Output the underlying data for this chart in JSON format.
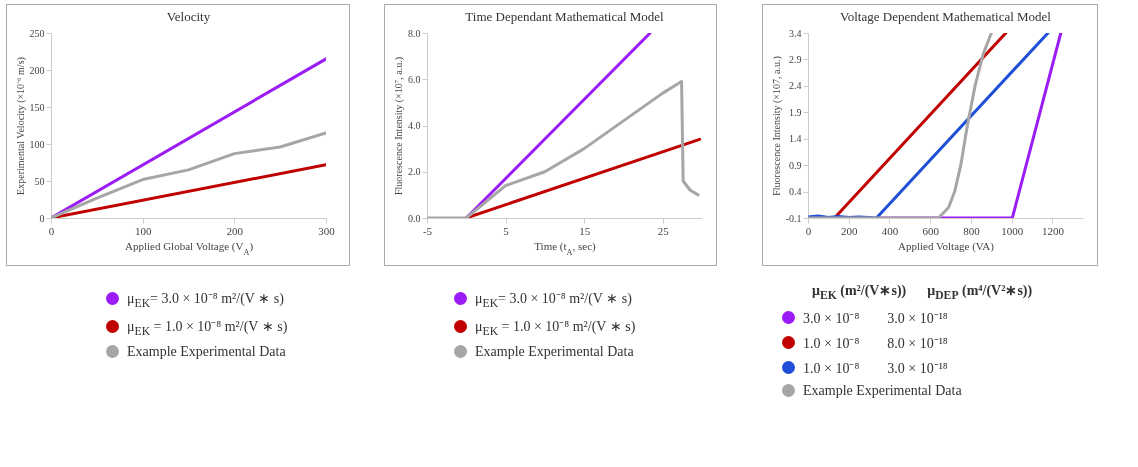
{
  "chart_data": [
    {
      "type": "line",
      "title": "Velocity",
      "xlabel": "Applied Global Voltage (V$_{A}$)",
      "ylabel": "Experimental  Velocity (×10⁻⁶ m/s)",
      "xlim": [
        0,
        300
      ],
      "xticks": [
        0,
        100,
        200,
        300
      ],
      "ylim": [
        0,
        250
      ],
      "yticks": [
        0,
        50,
        100,
        150,
        200,
        250
      ],
      "legend": "bottom",
      "series": [
        {
          "name": "μ$_{EK}$= 3.0 × 10⁻⁸ m²/(V ∗ s)",
          "color": "#9b1cf5",
          "x": [
            0,
            300
          ],
          "values": [
            0,
            215
          ]
        },
        {
          "name": "μ$_{EK}$ = 1.0 × 10⁻⁸ m²/(V ∗ s)",
          "color": "#c00000",
          "x": [
            0,
            300
          ],
          "values": [
            0,
            72
          ]
        },
        {
          "name": "Example Experimental Data",
          "color": "#a6a6a6",
          "x": [
            0,
            50,
            100,
            150,
            200,
            250,
            300
          ],
          "values": [
            0,
            27,
            52,
            65,
            87,
            96,
            115
          ]
        }
      ]
    },
    {
      "type": "line",
      "title": "Time Dependant Mathematical Model",
      "xlabel": "Time (t$_{A}$, sec)",
      "ylabel": "Fluorescence Intensity (×10⁷, a.u.)",
      "xlim": [
        -5,
        30
      ],
      "xticks": [
        -5,
        5,
        15,
        25
      ],
      "ylim": [
        0,
        8
      ],
      "yticks": [
        {
          "value": 0,
          "label": "0.0"
        },
        {
          "value": 2,
          "label": "2.0"
        },
        {
          "value": 4,
          "label": "4.0"
        },
        {
          "value": 6,
          "label": "6.0"
        },
        {
          "value": 8,
          "label": "8.0"
        }
      ],
      "legend": "bottom",
      "series": [
        {
          "name": "μ$_{EK}$= 3.0 × 10⁻⁸ m²/(V ∗ s)",
          "color": "#9b1cf5",
          "x": [
            0,
            23.4
          ],
          "values": [
            0,
            8
          ]
        },
        {
          "name": "μ$_{EK}$ = 1.0 × 10⁻⁸ m²/(V ∗ s)",
          "color": "#c00000",
          "x": [
            0,
            29.7
          ],
          "values": [
            0,
            3.4
          ]
        },
        {
          "name": "Example Experimental Data",
          "color": "#a6a6a6",
          "x": [
            -5,
            0,
            5,
            10,
            15,
            20,
            25,
            27.4,
            27.6,
            28.5,
            29.5
          ],
          "values": [
            0,
            0,
            1.4,
            2.0,
            3.0,
            4.2,
            5.4,
            5.9,
            1.6,
            1.2,
            1.0
          ]
        }
      ]
    },
    {
      "type": "line",
      "title": "Voltage Dependent Mathematical Model",
      "xlabel": "Applied  Voltage (VA)",
      "ylabel": "Fluorescence Intensity (×107, a.u.)",
      "xlim": [
        0,
        1350
      ],
      "xticks": [
        0,
        200,
        400,
        600,
        800,
        1000,
        1200
      ],
      "ylim": [
        -0.1,
        3.4
      ],
      "yticks": [
        -0.1,
        0.4,
        0.9,
        1.4,
        1.9,
        2.4,
        2.9,
        3.4
      ],
      "legend": "bottom",
      "legend_title": "μ$_{EK}$ (m²/(V∗s))      μ$_{DEP}$ (m⁴/(V²∗s))",
      "series": [
        {
          "name": "3.0 × 10⁻⁸        3.0 × 10⁻¹⁸",
          "color": "#9b1cf5",
          "x": [
            340,
            1003,
            1241
          ],
          "values": [
            -0.1,
            -0.1,
            3.4
          ]
        },
        {
          "name": "1.0 × 10⁻⁸        8.0 × 10⁻¹⁸",
          "color": "#c00000",
          "x": [
            0,
            130,
            971
          ],
          "values": [
            -0.1,
            -0.1,
            3.4
          ]
        },
        {
          "name": "1.0 × 10⁻⁸        3.0 × 10⁻¹⁸",
          "color": "#1f4fd6",
          "x": [
            0,
            50,
            100,
            150,
            200,
            250,
            300,
            336,
            1178
          ],
          "values": [
            -0.08,
            -0.06,
            -0.09,
            -0.07,
            -0.09,
            -0.08,
            -0.09,
            -0.1,
            3.4
          ]
        },
        {
          "name": "Example Experimental Data",
          "color": "#a6a6a6",
          "x": [
            0,
            640,
            690,
            720,
            750,
            780,
            820,
            860,
            900
          ],
          "values": [
            -0.1,
            -0.1,
            0.1,
            0.4,
            0.9,
            1.6,
            2.4,
            3.0,
            3.4
          ]
        }
      ]
    }
  ]
}
